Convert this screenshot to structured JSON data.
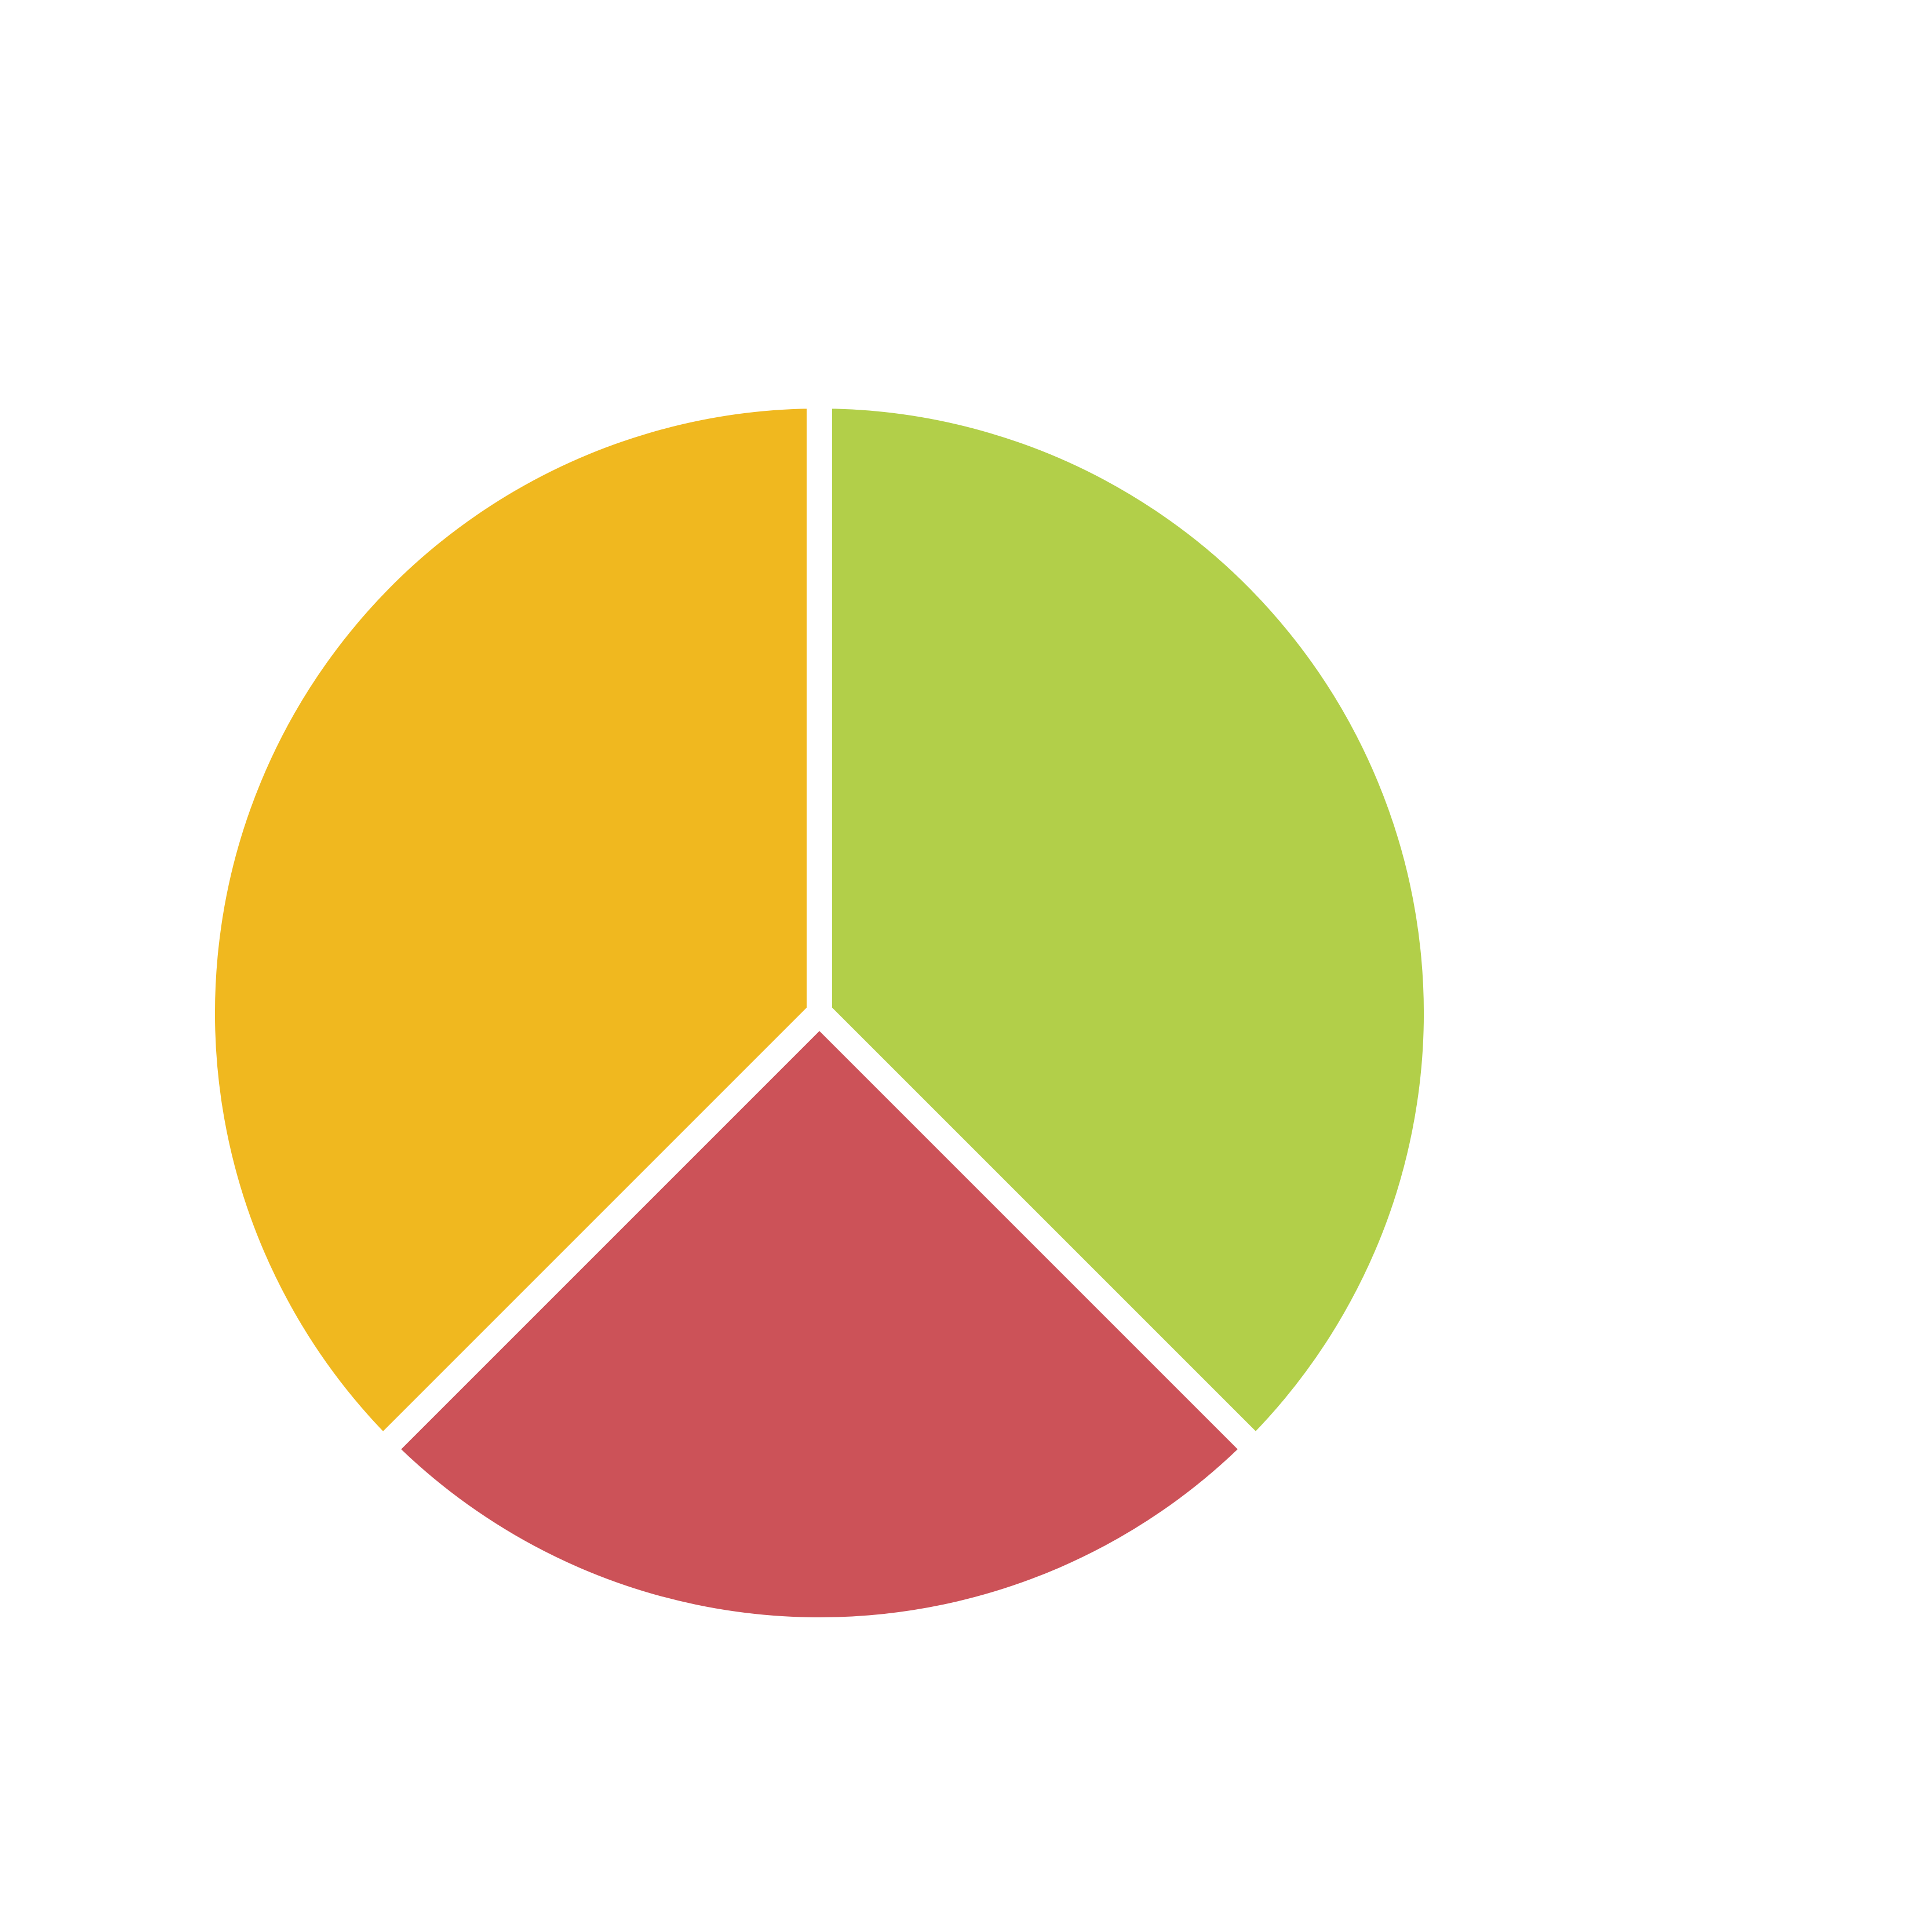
{
  "chart_data": {
    "type": "pie",
    "values": [
      37.5,
      25,
      37.5
    ],
    "colors": [
      "#b2cf49",
      "#cc5258",
      "#f0b81f"
    ]
  }
}
